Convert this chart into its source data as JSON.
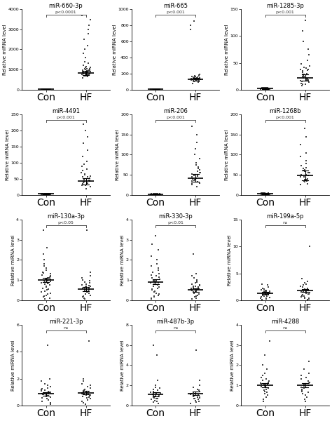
{
  "panels": [
    {
      "title": "miR-660-3p",
      "pvalue": "p<0.0001",
      "ylim": [
        0,
        4000
      ],
      "yticks": [
        0,
        1000,
        2000,
        3000,
        4000
      ],
      "con_mean": 20,
      "con_sem": 10,
      "hf_mean": 820,
      "hf_sem": 100,
      "con_points": [
        5,
        8,
        3,
        12,
        7,
        4,
        9,
        6,
        11,
        2,
        15,
        8,
        4,
        6,
        10,
        7,
        3,
        9,
        12,
        5,
        8,
        14,
        6,
        3,
        7,
        10,
        4,
        8,
        5,
        11,
        6,
        9,
        4,
        7,
        3,
        8,
        5,
        10,
        6,
        2,
        9,
        11,
        7,
        4
      ],
      "hf_points": [
        800,
        900,
        750,
        1100,
        650,
        950,
        700,
        850,
        920,
        780,
        1050,
        600,
        870,
        810,
        760,
        980,
        1020,
        690,
        830,
        910,
        740,
        860,
        770,
        940,
        880,
        720,
        960,
        680,
        700,
        750,
        800,
        850,
        900,
        950,
        1000,
        1050,
        1100,
        1150,
        1200,
        1300,
        1400,
        1600,
        1800,
        2000,
        2200,
        2500,
        2800,
        3000,
        3200,
        3500,
        3700
      ]
    },
    {
      "title": "miR-665",
      "pvalue": "p<0.001",
      "ylim": [
        0,
        1000
      ],
      "yticks": [
        0,
        200,
        400,
        600,
        800,
        1000
      ],
      "con_mean": 5,
      "con_sem": 2,
      "hf_mean": 130,
      "hf_sem": 20,
      "con_points": [
        3,
        5,
        2,
        4,
        6,
        3,
        7,
        4,
        5,
        2,
        6,
        3,
        4,
        5,
        3,
        6,
        2,
        4,
        7,
        3,
        5,
        4,
        6,
        3,
        2,
        5,
        4,
        6,
        3,
        5,
        7,
        4,
        2,
        6,
        3,
        5,
        4,
        7,
        3,
        6,
        2,
        4,
        5,
        3
      ],
      "hf_points": [
        80,
        100,
        120,
        140,
        160,
        130,
        110,
        145,
        135,
        125,
        165,
        115,
        155,
        140,
        120,
        130,
        150,
        110,
        145,
        135,
        125,
        165,
        120,
        140,
        155,
        108,
        148,
        138,
        128,
        168,
        90,
        105,
        115,
        125,
        135,
        145,
        155,
        170,
        180,
        190,
        750,
        800,
        850
      ]
    },
    {
      "title": "miR-1285-3p",
      "pvalue": "p<0.001",
      "ylim": [
        0,
        150
      ],
      "yticks": [
        0,
        50,
        100,
        150
      ],
      "con_mean": 2,
      "con_sem": 1,
      "hf_mean": 22,
      "hf_sem": 6,
      "con_points": [
        1,
        2,
        3,
        1,
        2,
        1,
        3,
        2,
        1,
        2,
        3,
        1,
        2,
        1,
        2,
        3,
        1,
        2,
        1,
        2,
        3,
        2,
        1,
        2,
        3,
        1,
        2,
        3,
        1,
        2,
        1,
        3,
        2,
        1,
        2,
        3,
        1,
        2,
        3,
        1,
        2,
        1
      ],
      "hf_points": [
        10,
        15,
        20,
        25,
        30,
        18,
        22,
        28,
        35,
        12,
        38,
        16,
        32,
        24,
        40,
        14,
        36,
        20,
        26,
        42,
        8,
        44,
        10,
        18,
        28,
        38,
        48,
        55,
        65,
        75,
        90,
        110,
        130
      ]
    },
    {
      "title": "miR-4491",
      "pvalue": "p<0.001",
      "ylim": [
        0,
        250
      ],
      "yticks": [
        0,
        50,
        100,
        150,
        200,
        250
      ],
      "con_mean": 3,
      "con_sem": 1.5,
      "hf_mean": 42,
      "hf_sem": 10,
      "con_points": [
        2,
        3,
        1,
        4,
        2,
        3,
        1,
        2,
        3,
        4,
        2,
        1,
        3,
        2,
        4,
        1,
        3,
        2,
        1,
        3,
        2,
        4,
        1,
        3,
        2,
        1,
        4,
        2,
        3,
        1,
        2,
        3,
        1,
        4,
        2,
        3,
        1,
        2,
        3,
        4
      ],
      "hf_points": [
        20,
        30,
        35,
        40,
        45,
        50,
        55,
        38,
        42,
        48,
        52,
        58,
        32,
        62,
        36,
        46,
        56,
        30,
        65,
        25,
        70,
        75,
        80,
        88,
        95,
        105,
        120,
        140,
        160,
        180,
        200,
        220
      ]
    },
    {
      "title": "miR-206",
      "pvalue": "p<0.001",
      "ylim": [
        0,
        200
      ],
      "yticks": [
        0,
        50,
        100,
        150,
        200
      ],
      "con_mean": 2,
      "con_sem": 1,
      "hf_mean": 42,
      "hf_sem": 10,
      "con_points": [
        1,
        2,
        3,
        1,
        2,
        1,
        3,
        2,
        1,
        2,
        3,
        1,
        2,
        1,
        2,
        3,
        1,
        2,
        1,
        2,
        3,
        2,
        1,
        2,
        3,
        1,
        2,
        3,
        1,
        2,
        1,
        3,
        2,
        1,
        2,
        3,
        1,
        2,
        3,
        1
      ],
      "hf_points": [
        20,
        30,
        35,
        40,
        45,
        50,
        55,
        38,
        42,
        48,
        52,
        58,
        32,
        62,
        36,
        46,
        56,
        30,
        65,
        25,
        70,
        75,
        80,
        90,
        100,
        115,
        130,
        150,
        170
      ]
    },
    {
      "title": "miR-1268b",
      "pvalue": "p<0.001",
      "ylim": [
        0,
        200
      ],
      "yticks": [
        0,
        50,
        100,
        150,
        200
      ],
      "con_mean": 3,
      "con_sem": 1.5,
      "hf_mean": 48,
      "hf_sem": 12,
      "con_points": [
        2,
        3,
        1,
        4,
        2,
        3,
        1,
        2,
        3,
        4,
        2,
        1,
        3,
        2,
        4,
        1,
        3,
        2,
        1,
        3,
        2,
        4,
        1,
        3,
        2,
        1,
        4,
        2,
        3,
        1,
        2,
        3,
        1,
        4,
        2,
        3,
        1,
        2,
        3,
        4
      ],
      "hf_points": [
        25,
        35,
        40,
        45,
        50,
        55,
        60,
        38,
        44,
        50,
        55,
        62,
        35,
        65,
        38,
        48,
        58,
        32,
        68,
        28,
        72,
        78,
        85,
        95,
        105,
        125,
        145,
        165
      ]
    },
    {
      "title": "miR-130a-3p",
      "pvalue": "p<0.05",
      "ylim": [
        0,
        4
      ],
      "yticks": [
        0,
        1,
        2,
        3,
        4
      ],
      "con_mean": 1.0,
      "con_sem": 0.12,
      "hf_mean": 0.55,
      "hf_sem": 0.1,
      "con_points": [
        0.05,
        0.1,
        0.15,
        0.2,
        0.25,
        0.3,
        0.35,
        0.4,
        0.45,
        0.5,
        0.55,
        0.6,
        0.65,
        0.7,
        0.75,
        0.8,
        0.82,
        0.85,
        0.87,
        0.9,
        0.92,
        0.95,
        0.97,
        1.0,
        1.02,
        1.05,
        1.08,
        1.1,
        1.12,
        1.15,
        1.18,
        1.2,
        1.25,
        1.3,
        1.35,
        1.4,
        1.5,
        1.6,
        1.7,
        1.8,
        2.0,
        2.3,
        2.6,
        3.5
      ],
      "hf_points": [
        0.05,
        0.1,
        0.15,
        0.2,
        0.25,
        0.3,
        0.35,
        0.4,
        0.42,
        0.45,
        0.47,
        0.5,
        0.52,
        0.55,
        0.57,
        0.6,
        0.62,
        0.65,
        0.68,
        0.7,
        0.72,
        0.75,
        0.78,
        0.8,
        0.85,
        0.9,
        0.95,
        1.0,
        1.1,
        1.2,
        1.4,
        3.5
      ]
    },
    {
      "title": "miR-330-3p",
      "pvalue": "p<0.01",
      "ylim": [
        0,
        4
      ],
      "yticks": [
        0,
        1,
        2,
        3,
        4
      ],
      "con_mean": 0.9,
      "con_sem": 0.12,
      "hf_mean": 0.5,
      "hf_sem": 0.08,
      "con_points": [
        0.05,
        0.1,
        0.15,
        0.2,
        0.25,
        0.3,
        0.35,
        0.4,
        0.45,
        0.5,
        0.55,
        0.6,
        0.65,
        0.7,
        0.75,
        0.8,
        0.85,
        0.87,
        0.9,
        0.92,
        0.95,
        0.97,
        1.0,
        1.05,
        1.1,
        1.15,
        1.2,
        1.25,
        1.3,
        1.4,
        1.5,
        1.6,
        1.7,
        1.8,
        2.0,
        2.2,
        2.5,
        2.8,
        3.2
      ],
      "hf_points": [
        0.05,
        0.1,
        0.15,
        0.2,
        0.25,
        0.3,
        0.35,
        0.4,
        0.42,
        0.45,
        0.47,
        0.5,
        0.52,
        0.55,
        0.57,
        0.6,
        0.62,
        0.65,
        0.68,
        0.7,
        0.72,
        0.75,
        0.8,
        0.85,
        0.9,
        0.95,
        1.0,
        1.1,
        1.2,
        1.3,
        2.3
      ]
    },
    {
      "title": "miR-199a-5p",
      "pvalue": "ns",
      "ylim": [
        0,
        15
      ],
      "yticks": [
        0,
        5,
        10,
        15
      ],
      "con_mean": 1.3,
      "con_sem": 0.2,
      "hf_mean": 1.8,
      "hf_sem": 0.3,
      "con_points": [
        0.1,
        0.2,
        0.3,
        0.4,
        0.5,
        0.6,
        0.7,
        0.8,
        0.85,
        0.9,
        0.95,
        1.0,
        1.05,
        1.1,
        1.15,
        1.2,
        1.25,
        1.3,
        1.35,
        1.4,
        1.45,
        1.5,
        1.55,
        1.6,
        1.65,
        1.7,
        1.75,
        1.8,
        1.9,
        2.0,
        2.2,
        2.5,
        2.8,
        3.0
      ],
      "hf_points": [
        0.1,
        0.2,
        0.3,
        0.4,
        0.5,
        0.6,
        0.7,
        0.8,
        0.9,
        1.0,
        1.1,
        1.2,
        1.3,
        1.4,
        1.5,
        1.6,
        1.7,
        1.8,
        1.9,
        2.0,
        2.2,
        2.4,
        2.6,
        2.8,
        3.0,
        3.2,
        3.5,
        4.0,
        10.0
      ]
    },
    {
      "title": "miR-221-3p",
      "pvalue": "ns",
      "ylim": [
        0,
        6
      ],
      "yticks": [
        0,
        2,
        4,
        6
      ],
      "con_mean": 0.85,
      "con_sem": 0.12,
      "hf_mean": 0.95,
      "hf_sem": 0.15,
      "con_points": [
        0.1,
        0.2,
        0.3,
        0.4,
        0.5,
        0.55,
        0.6,
        0.65,
        0.7,
        0.72,
        0.75,
        0.78,
        0.8,
        0.82,
        0.85,
        0.88,
        0.9,
        0.92,
        0.95,
        0.98,
        1.0,
        1.05,
        1.1,
        1.15,
        1.2,
        1.25,
        1.3,
        1.4,
        1.5,
        1.6,
        1.8,
        2.0,
        4.5
      ],
      "hf_points": [
        0.1,
        0.2,
        0.3,
        0.4,
        0.5,
        0.55,
        0.6,
        0.65,
        0.7,
        0.75,
        0.78,
        0.82,
        0.85,
        0.88,
        0.9,
        0.92,
        0.95,
        0.98,
        1.0,
        1.05,
        1.1,
        1.15,
        1.2,
        1.3,
        1.4,
        1.5,
        1.6,
        1.8,
        2.0,
        4.8
      ]
    },
    {
      "title": "miR-487b-3p",
      "pvalue": "ns",
      "ylim": [
        0,
        8
      ],
      "yticks": [
        0,
        2,
        4,
        6,
        8
      ],
      "con_mean": 1.1,
      "con_sem": 0.2,
      "hf_mean": 1.2,
      "hf_sem": 0.18,
      "con_points": [
        0.2,
        0.3,
        0.4,
        0.5,
        0.6,
        0.65,
        0.7,
        0.75,
        0.8,
        0.85,
        0.9,
        0.92,
        0.95,
        0.98,
        1.0,
        1.05,
        1.1,
        1.15,
        1.2,
        1.25,
        1.3,
        1.4,
        1.5,
        1.6,
        1.7,
        1.8,
        2.0,
        2.5,
        5.0,
        6.0
      ],
      "hf_points": [
        0.2,
        0.3,
        0.4,
        0.5,
        0.6,
        0.65,
        0.7,
        0.75,
        0.8,
        0.85,
        0.9,
        0.95,
        1.0,
        1.05,
        1.1,
        1.15,
        1.2,
        1.3,
        1.4,
        1.5,
        1.6,
        1.8,
        2.0,
        2.5,
        5.5
      ]
    },
    {
      "title": "miR-4288",
      "pvalue": "ns",
      "ylim": [
        0,
        4
      ],
      "yticks": [
        0,
        1,
        2,
        3,
        4
      ],
      "con_mean": 1.0,
      "con_sem": 0.12,
      "hf_mean": 1.0,
      "hf_sem": 0.1,
      "con_points": [
        0.2,
        0.3,
        0.4,
        0.5,
        0.6,
        0.65,
        0.7,
        0.75,
        0.8,
        0.85,
        0.9,
        0.92,
        0.95,
        0.98,
        1.0,
        1.02,
        1.05,
        1.08,
        1.1,
        1.15,
        1.2,
        1.25,
        1.3,
        1.4,
        1.5,
        1.6,
        1.8,
        2.0,
        2.5,
        3.2
      ],
      "hf_points": [
        0.2,
        0.3,
        0.4,
        0.5,
        0.6,
        0.65,
        0.7,
        0.75,
        0.8,
        0.85,
        0.9,
        0.95,
        1.0,
        1.05,
        1.1,
        1.15,
        1.2,
        1.3,
        1.4,
        1.5,
        1.6,
        1.8,
        2.2
      ]
    }
  ],
  "nrows": 4,
  "ncols": 3,
  "figsize": [
    4.74,
    6.0
  ],
  "dpi": 100,
  "xlabel_con": "Con",
  "xlabel_hf": "HF",
  "ylabel": "Relative miRNA level",
  "dot_color": "#444444",
  "dot_size": 2.5,
  "line_color": "#000000",
  "title_fontsize": 6.0,
  "axis_fontsize": 5.0,
  "tick_fontsize": 4.5,
  "sig_fontsize": 4.5
}
